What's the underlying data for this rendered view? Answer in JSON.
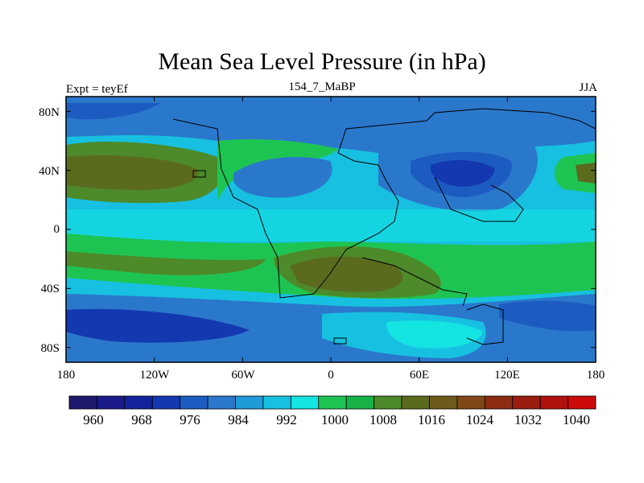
{
  "title": "Mean Sea Level Pressure (in hPa)",
  "left_label": "Expt = teyEf",
  "center_label": "154_7_MaBP",
  "right_label": "JJA",
  "lat_ticks": [
    "80N",
    "40N",
    "0",
    "40S",
    "80S"
  ],
  "lon_ticks": [
    "180",
    "120W",
    "60W",
    "0",
    "60E",
    "120E",
    "180"
  ],
  "colorbar": {
    "labels": [
      "960",
      "968",
      "976",
      "984",
      "992",
      "1000",
      "1008",
      "1016",
      "1024",
      "1032",
      "1040"
    ],
    "colors": [
      "#1f1a6e",
      "#1a1a8a",
      "#13239c",
      "#1438b0",
      "#1c5cc0",
      "#2a78cc",
      "#1e9bd8",
      "#17c0e0",
      "#14e4e2",
      "#1ec452",
      "#17b248",
      "#4d8a2a",
      "#5a6b1e",
      "#6e5a1a",
      "#804718",
      "#8c2c12",
      "#9a1e10",
      "#b0120e",
      "#cc0a0a"
    ]
  },
  "map": {
    "type": "filled-contour",
    "variable": "Mean sea level pressure",
    "units": "hPa",
    "lon_range": [
      -180,
      180
    ],
    "lat_range": [
      -90,
      90
    ]
  }
}
